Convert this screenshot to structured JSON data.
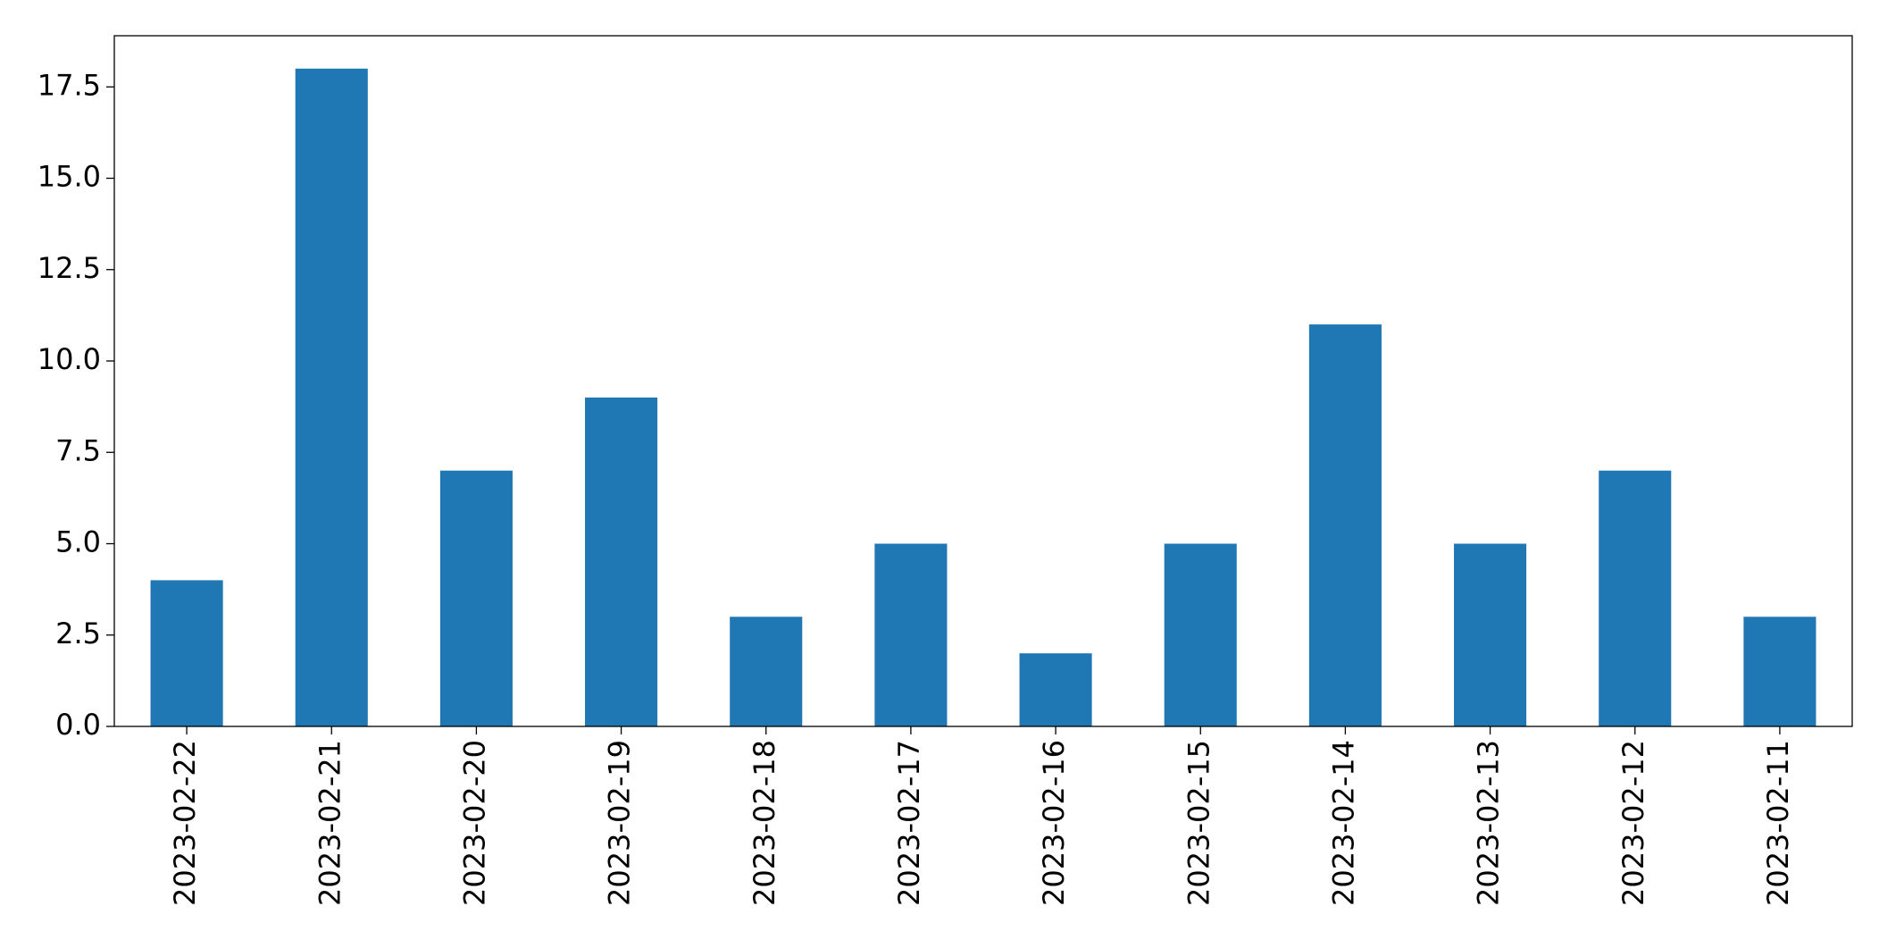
{
  "chart_data": {
    "type": "bar",
    "categories": [
      "2023-02-22",
      "2023-02-21",
      "2023-02-20",
      "2023-02-19",
      "2023-02-18",
      "2023-02-17",
      "2023-02-16",
      "2023-02-15",
      "2023-02-14",
      "2023-02-13",
      "2023-02-12",
      "2023-02-11"
    ],
    "values": [
      4,
      18,
      7,
      9,
      3,
      5,
      2,
      5,
      11,
      5,
      7,
      3
    ],
    "color": "#1f77b4",
    "ylim": [
      0,
      18.9
    ],
    "yticks": [
      {
        "value": 0,
        "label": "0.0"
      },
      2.5,
      {
        "value": 5,
        "label": "5.0"
      },
      7.5,
      {
        "value": 10,
        "label": "10.0"
      },
      12.5,
      {
        "value": 15,
        "label": "15.0"
      },
      17.5
    ],
    "grid": false
  }
}
